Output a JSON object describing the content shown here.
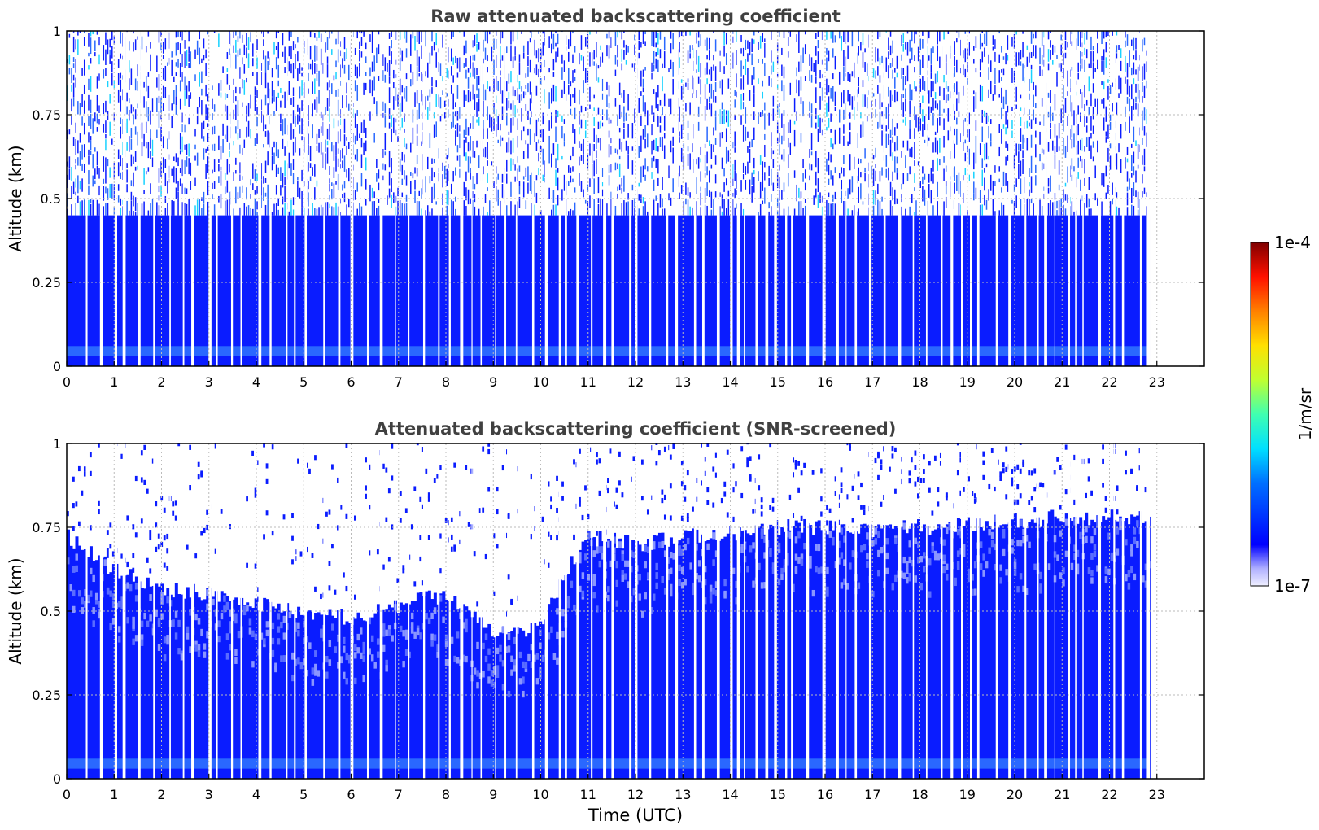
{
  "chart_data": [
    {
      "type": "heatmap",
      "title": "Raw attenuated backscattering coefficient",
      "xlabel": "",
      "ylabel": "Altitude (km)",
      "xlim": [
        0,
        24
      ],
      "ylim": [
        0,
        1
      ],
      "xticks": [
        "0",
        "1",
        "2",
        "3",
        "4",
        "5",
        "6",
        "7",
        "8",
        "9",
        "10",
        "11",
        "12",
        "13",
        "14",
        "15",
        "16",
        "17",
        "18",
        "19",
        "20",
        "21",
        "22",
        "23"
      ],
      "yticks": [
        "0",
        "0.25",
        "0.5",
        "0.75",
        "1"
      ],
      "grid": true,
      "data_end_time": 22.85,
      "profile": [
        {
          "altitude_range": [
            0,
            0.03
          ],
          "level": "low-medium"
        },
        {
          "altitude_range": [
            0.03,
            0.06
          ],
          "level": "medium (light-blue band)"
        },
        {
          "altitude_range": [
            0.06,
            0.45
          ],
          "level": "low (solid blue)"
        },
        {
          "altitude_range": [
            0.45,
            1.0
          ],
          "level": "noisy / speckled blue-cyan"
        }
      ]
    },
    {
      "type": "heatmap",
      "title": "Attenuated backscattering coefficient (SNR-screened)",
      "xlabel": "Time (UTC)",
      "ylabel": "Altitude (km)",
      "xlim": [
        0,
        24
      ],
      "ylim": [
        0,
        1
      ],
      "xticks": [
        "0",
        "1",
        "2",
        "3",
        "4",
        "5",
        "6",
        "7",
        "8",
        "9",
        "10",
        "11",
        "12",
        "13",
        "14",
        "15",
        "16",
        "17",
        "18",
        "19",
        "20",
        "21",
        "22",
        "23"
      ],
      "yticks": [
        "0",
        "0.25",
        "0.5",
        "0.75",
        "1"
      ],
      "grid": true,
      "data_end_time": 22.85,
      "layer_top_km": [
        {
          "t": 0,
          "h": 0.72
        },
        {
          "t": 1,
          "h": 0.62
        },
        {
          "t": 2,
          "h": 0.57
        },
        {
          "t": 3,
          "h": 0.55
        },
        {
          "t": 4,
          "h": 0.52
        },
        {
          "t": 5,
          "h": 0.5
        },
        {
          "t": 6,
          "h": 0.48
        },
        {
          "t": 7,
          "h": 0.52
        },
        {
          "t": 8,
          "h": 0.55
        },
        {
          "t": 9,
          "h": 0.44
        },
        {
          "t": 10,
          "h": 0.45
        },
        {
          "t": 10.5,
          "h": 0.62
        },
        {
          "t": 11,
          "h": 0.72
        },
        {
          "t": 12,
          "h": 0.7
        },
        {
          "t": 13,
          "h": 0.72
        },
        {
          "t": 14,
          "h": 0.73
        },
        {
          "t": 15,
          "h": 0.75
        },
        {
          "t": 16,
          "h": 0.75
        },
        {
          "t": 17,
          "h": 0.74
        },
        {
          "t": 18,
          "h": 0.75
        },
        {
          "t": 19,
          "h": 0.76
        },
        {
          "t": 20,
          "h": 0.77
        },
        {
          "t": 21,
          "h": 0.78
        },
        {
          "t": 22,
          "h": 0.78
        },
        {
          "t": 22.85,
          "h": 0.78
        }
      ]
    }
  ],
  "colorbar": {
    "label": "1/m/sr",
    "min_label": "1e-7",
    "max_label": "1e-4",
    "scale": "log",
    "colormap": "jet"
  },
  "colors": {
    "blue": "#0a1cff",
    "light_blue": "#2a68ff",
    "cyan": "#18d2ff",
    "grid": "#bbbbbb",
    "title_text": "#404040"
  }
}
